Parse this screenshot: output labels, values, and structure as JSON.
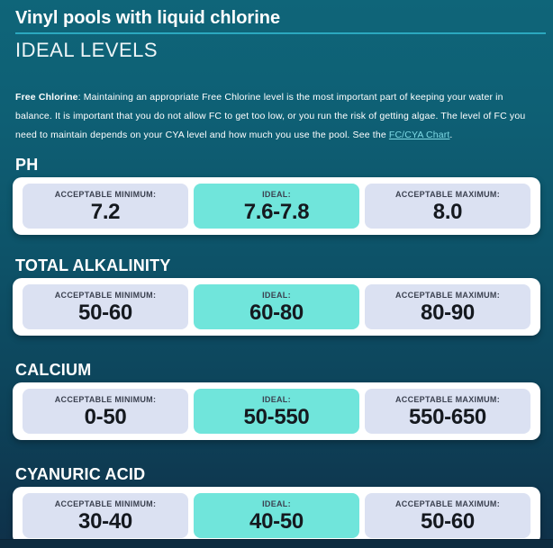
{
  "page": {
    "title": "Vinyl pools with liquid chlorine",
    "subtitle": "IDEAL LEVELS"
  },
  "intro": {
    "lead": "Free Chlorine",
    "text": ": Maintaining an appropriate Free Chlorine level is the most important part of keeping your water in balance. It is important that you do not allow FC to get too low, or you run the risk of getting algae. The level of FC you need to maintain depends on your CYA level and how much you use the pool. See the ",
    "link_text": "FC/CYA Chart",
    "after_link": "."
  },
  "sections": [
    {
      "title": "PH",
      "cells": [
        {
          "label": "ACCEPTABLE MINIMUM:",
          "value": "7.2"
        },
        {
          "label": "IDEAL:",
          "value": "7.6-7.8"
        },
        {
          "label": "ACCEPTABLE MAXIMUM:",
          "value": "8.0"
        }
      ]
    },
    {
      "title": "TOTAL ALKALINITY",
      "cells": [
        {
          "label": "ACCEPTABLE MINIMUM:",
          "value": "50-60"
        },
        {
          "label": "IDEAL:",
          "value": "60-80"
        },
        {
          "label": "ACCEPTABLE MAXIMUM:",
          "value": "80-90"
        }
      ]
    },
    {
      "title": "CALCIUM",
      "cells": [
        {
          "label": "ACCEPTABLE MINIMUM:",
          "value": "0-50"
        },
        {
          "label": "IDEAL:",
          "value": "50-550"
        },
        {
          "label": "ACCEPTABLE MAXIMUM:",
          "value": "550-650"
        }
      ]
    },
    {
      "title": "CYANURIC ACID",
      "cells": [
        {
          "label": "ACCEPTABLE MINIMUM:",
          "value": "30-40"
        },
        {
          "label": "IDEAL:",
          "value": "40-50"
        },
        {
          "label": "ACCEPTABLE MAXIMUM:",
          "value": "50-60"
        }
      ]
    }
  ],
  "colors": {
    "background_top": "#0f6579",
    "background_bottom": "#0e364e",
    "footer_strip": "#0d2b40",
    "title_rule": "#2ba8bf",
    "card_background": "#ffffff",
    "range_box": "#dbe1f2",
    "ideal_box": "#70e5db",
    "link": "#7fdbe6",
    "label_text": "#3b4150",
    "value_text": "#15191f"
  }
}
